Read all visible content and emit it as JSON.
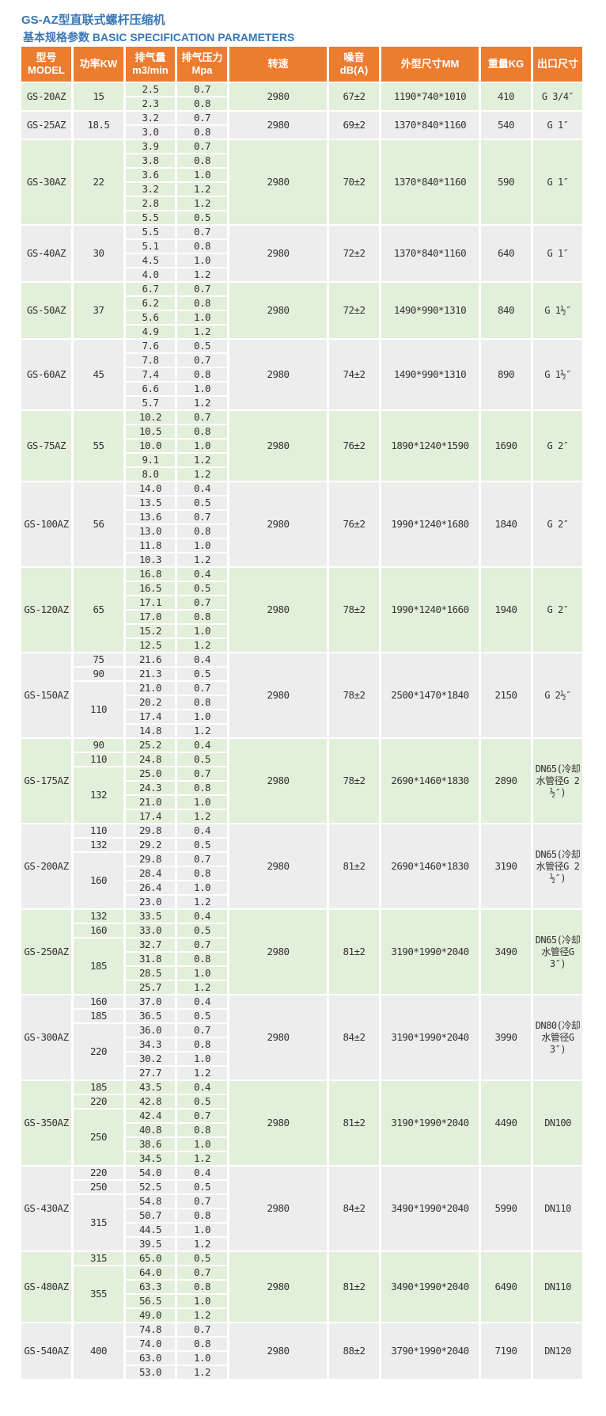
{
  "title": "GS-AZ型直联式螺杆压缩机",
  "subtitle": "基本规格参数 BASIC SPECIFICATION PARAMETERS",
  "colors": {
    "header": "#ec7c30",
    "row_green": "#e2efda",
    "row_gray": "#ededed",
    "title": "#3a78b5"
  },
  "headers": [
    "型号 MODEL",
    "功率KW",
    "排气量 m3/min",
    "排气压力Mpa",
    "转速",
    "噪音 dB(A)",
    "外型尺寸MM",
    "重量KG",
    "出口尺寸"
  ],
  "models": [
    {
      "model": "GS-20AZ",
      "power": [
        {
          "kw": "15",
          "span": 2
        }
      ],
      "flow": [
        "2.5",
        "2.3"
      ],
      "pressure": [
        "0.7",
        "0.8"
      ],
      "speed": "2980",
      "noise": "67±2",
      "dims": "1190*740*1010",
      "weight": "410",
      "outlet": "G 3/4″"
    },
    {
      "model": "GS-25AZ",
      "power": [
        {
          "kw": "18.5",
          "span": 2
        }
      ],
      "flow": [
        "3.2",
        "3.0"
      ],
      "pressure": [
        "0.7",
        "0.8"
      ],
      "speed": "2980",
      "noise": "69±2",
      "dims": "1370*840*1160",
      "weight": "540",
      "outlet": "G 1″"
    },
    {
      "model": "GS-30AZ",
      "power": [
        {
          "kw": "22",
          "span": 6
        }
      ],
      "flow": [
        "3.9",
        "3.8",
        "3.6",
        "3.2",
        "2.8",
        "5.5"
      ],
      "pressure": [
        "0.7",
        "0.8",
        "1.0",
        "1.2",
        "1.2",
        "0.5"
      ],
      "speed": "2980",
      "noise": "70±2",
      "dims": "1370*840*1160",
      "weight": "590",
      "outlet": "G 1″"
    },
    {
      "model": "GS-40AZ",
      "power": [
        {
          "kw": "30",
          "span": 4
        }
      ],
      "flow": [
        "5.5",
        "5.1",
        "4.5",
        "4.0"
      ],
      "pressure": [
        "0.7",
        "0.8",
        "1.0",
        "1.2"
      ],
      "speed": "2980",
      "noise": "72±2",
      "dims": "1370*840*1160",
      "weight": "640",
      "outlet": "G 1″"
    },
    {
      "model": "GS-50AZ",
      "power": [
        {
          "kw": "37",
          "span": 4
        }
      ],
      "flow": [
        "6.7",
        "6.2",
        "5.6",
        "4.9"
      ],
      "pressure": [
        "0.7",
        "0.8",
        "1.0",
        "1.2"
      ],
      "speed": "2980",
      "noise": "72±2",
      "dims": "1490*990*1310",
      "weight": "840",
      "outlet": "G 1½″"
    },
    {
      "model": "GS-60AZ",
      "power": [
        {
          "kw": "45",
          "span": 5
        }
      ],
      "flow": [
        "7.6",
        "7.8",
        "7.4",
        "6.6",
        "5.7"
      ],
      "pressure": [
        "0.5",
        "0.7",
        "0.8",
        "1.0",
        "1.2"
      ],
      "speed": "2980",
      "noise": "74±2",
      "dims": "1490*990*1310",
      "weight": "890",
      "outlet": "G 1½″"
    },
    {
      "model": "GS-75AZ",
      "power": [
        {
          "kw": "55",
          "span": 5
        }
      ],
      "flow": [
        "10.2",
        "10.5",
        "10.0",
        "9.1",
        "8.0"
      ],
      "pressure": [
        "0.7",
        "0.8",
        "1.0",
        "1.2",
        "1.2"
      ],
      "speed": "2980",
      "noise": "76±2",
      "dims": "1890*1240*1590",
      "weight": "1690",
      "outlet": "G 2″"
    },
    {
      "model": "GS-100AZ",
      "power": [
        {
          "kw": "56",
          "span": 6
        }
      ],
      "flow": [
        "14.0",
        "13.5",
        "13.6",
        "13.0",
        "11.8",
        "10.3"
      ],
      "pressure": [
        "0.4",
        "0.5",
        "0.7",
        "0.8",
        "1.0",
        "1.2"
      ],
      "speed": "2980",
      "noise": "76±2",
      "dims": "1990*1240*1680",
      "weight": "1840",
      "outlet": "G 2″"
    },
    {
      "model": "GS-120AZ",
      "power": [
        {
          "kw": "65",
          "span": 6
        }
      ],
      "flow": [
        "16.8",
        "16.5",
        "17.1",
        "17.0",
        "15.2",
        "12.5"
      ],
      "pressure": [
        "0.4",
        "0.5",
        "0.7",
        "0.8",
        "1.0",
        "1.2"
      ],
      "speed": "2980",
      "noise": "78±2",
      "dims": "1990*1240*1660",
      "weight": "1940",
      "outlet": "G 2″"
    },
    {
      "model": "GS-150AZ",
      "power": [
        {
          "kw": "75",
          "span": 1
        },
        {
          "kw": "90",
          "span": 1
        },
        {
          "kw": "110",
          "span": 4
        }
      ],
      "flow": [
        "21.6",
        "21.3",
        "21.0",
        "20.2",
        "17.4",
        "14.8"
      ],
      "pressure": [
        "0.4",
        "0.5",
        "0.7",
        "0.8",
        "1.0",
        "1.2"
      ],
      "speed": "2980",
      "noise": "78±2",
      "dims": "2500*1470*1840",
      "weight": "2150",
      "outlet": "G 2½″"
    },
    {
      "model": "GS-175AZ",
      "power": [
        {
          "kw": "90",
          "span": 1
        },
        {
          "kw": "110",
          "span": 1
        },
        {
          "kw": "132",
          "span": 4
        }
      ],
      "flow": [
        "25.2",
        "24.8",
        "25.0",
        "24.3",
        "21.0",
        "17.4"
      ],
      "pressure": [
        "0.4",
        "0.5",
        "0.7",
        "0.8",
        "1.0",
        "1.2"
      ],
      "speed": "2980",
      "noise": "78±2",
      "dims": "2690*1460*1830",
      "weight": "2890",
      "outlet": "DN65(冷却水管径G 2½″)"
    },
    {
      "model": "GS-200AZ",
      "power": [
        {
          "kw": "110",
          "span": 1
        },
        {
          "kw": "132",
          "span": 1
        },
        {
          "kw": "160",
          "span": 4
        }
      ],
      "flow": [
        "29.8",
        "29.2",
        "29.8",
        "28.4",
        "26.4",
        "23.0"
      ],
      "pressure": [
        "0.4",
        "0.5",
        "0.7",
        "0.8",
        "1.0",
        "1.2"
      ],
      "speed": "2980",
      "noise": "81±2",
      "dims": "2690*1460*1830",
      "weight": "3190",
      "outlet": "DN65(冷却水管径G 2½″)"
    },
    {
      "model": "GS-250AZ",
      "power": [
        {
          "kw": "132",
          "span": 1
        },
        {
          "kw": "160",
          "span": 1
        },
        {
          "kw": "185",
          "span": 4
        }
      ],
      "flow": [
        "33.5",
        "33.0",
        "32.7",
        "31.8",
        "28.5",
        "25.7"
      ],
      "pressure": [
        "0.4",
        "0.5",
        "0.7",
        "0.8",
        "1.0",
        "1.2"
      ],
      "speed": "2980",
      "noise": "81±2",
      "dims": "3190*1990*2040",
      "weight": "3490",
      "outlet": "DN65(冷却水管径G 3″)"
    },
    {
      "model": "GS-300AZ",
      "power": [
        {
          "kw": "160",
          "span": 1
        },
        {
          "kw": "185",
          "span": 1
        },
        {
          "kw": "220",
          "span": 4
        }
      ],
      "flow": [
        "37.0",
        "36.5",
        "36.0",
        "34.3",
        "30.2",
        "27.7"
      ],
      "pressure": [
        "0.4",
        "0.5",
        "0.7",
        "0.8",
        "1.0",
        "1.2"
      ],
      "speed": "2980",
      "noise": "84±2",
      "dims": "3190*1990*2040",
      "weight": "3990",
      "outlet": "DN80(冷却水管径G 3″)"
    },
    {
      "model": "GS-350AZ",
      "power": [
        {
          "kw": "185",
          "span": 1
        },
        {
          "kw": "220",
          "span": 1
        },
        {
          "kw": "250",
          "span": 4
        }
      ],
      "flow": [
        "43.5",
        "42.8",
        "42.4",
        "40.8",
        "38.6",
        "34.5"
      ],
      "pressure": [
        "0.4",
        "0.5",
        "0.7",
        "0.8",
        "1.0",
        "1.2"
      ],
      "speed": "2980",
      "noise": "81±2",
      "dims": "3190*1990*2040",
      "weight": "4490",
      "outlet": "DN100"
    },
    {
      "model": "GS-430AZ",
      "power": [
        {
          "kw": "220",
          "span": 1
        },
        {
          "kw": "250",
          "span": 1
        },
        {
          "kw": "315",
          "span": 4
        }
      ],
      "flow": [
        "54.0",
        "52.5",
        "54.8",
        "50.7",
        "44.5",
        "39.5"
      ],
      "pressure": [
        "0.4",
        "0.5",
        "0.7",
        "0.8",
        "1.0",
        "1.2"
      ],
      "speed": "2980",
      "noise": "84±2",
      "dims": "3490*1990*2040",
      "weight": "5990",
      "outlet": "DN110"
    },
    {
      "model": "GS-480AZ",
      "power": [
        {
          "kw": "315",
          "span": 1
        },
        {
          "kw": "355",
          "span": 4
        }
      ],
      "flow": [
        "65.0",
        "64.0",
        "63.3",
        "56.5",
        "49.0"
      ],
      "pressure": [
        "0.5",
        "0.7",
        "0.8",
        "1.0",
        "1.2"
      ],
      "speed": "2980",
      "noise": "81±2",
      "dims": "3490*1990*2040",
      "weight": "6490",
      "outlet": "DN110"
    },
    {
      "model": "GS-540AZ",
      "power": [
        {
          "kw": "400",
          "span": 4
        }
      ],
      "flow": [
        "74.8",
        "74.0",
        "63.0",
        "53.0"
      ],
      "pressure": [
        "0.7",
        "0.8",
        "1.0",
        "1.2"
      ],
      "speed": "2980",
      "noise": "88±2",
      "dims": "3790*1990*2040",
      "weight": "7190",
      "outlet": "DN120"
    }
  ]
}
